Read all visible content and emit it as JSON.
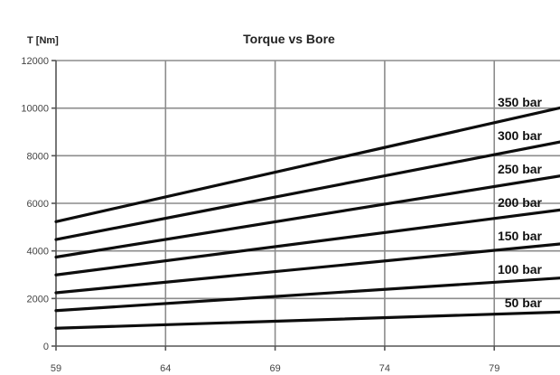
{
  "chart_data": {
    "type": "line",
    "title": "Torque vs Bore",
    "ylabel": "T [Nm]",
    "xlabel": "",
    "xlim": [
      59,
      82
    ],
    "ylim": [
      0,
      12000
    ],
    "x_ticks": [
      59,
      64,
      69,
      74,
      79
    ],
    "y_ticks": [
      0,
      2000,
      4000,
      6000,
      8000,
      10000,
      12000
    ],
    "grid": true,
    "x": [
      59,
      82
    ],
    "series": [
      {
        "name": "50 bar",
        "values": [
          750,
          1430
        ]
      },
      {
        "name": "100 bar",
        "values": [
          1490,
          2860
        ]
      },
      {
        "name": "150 bar",
        "values": [
          2240,
          4290
        ]
      },
      {
        "name": "200 bar",
        "values": [
          2990,
          5720
        ]
      },
      {
        "name": "250 bar",
        "values": [
          3740,
          7150
        ]
      },
      {
        "name": "300 bar",
        "values": [
          4480,
          8580
        ]
      },
      {
        "name": "350 bar",
        "values": [
          5230,
          10010
        ]
      }
    ]
  }
}
